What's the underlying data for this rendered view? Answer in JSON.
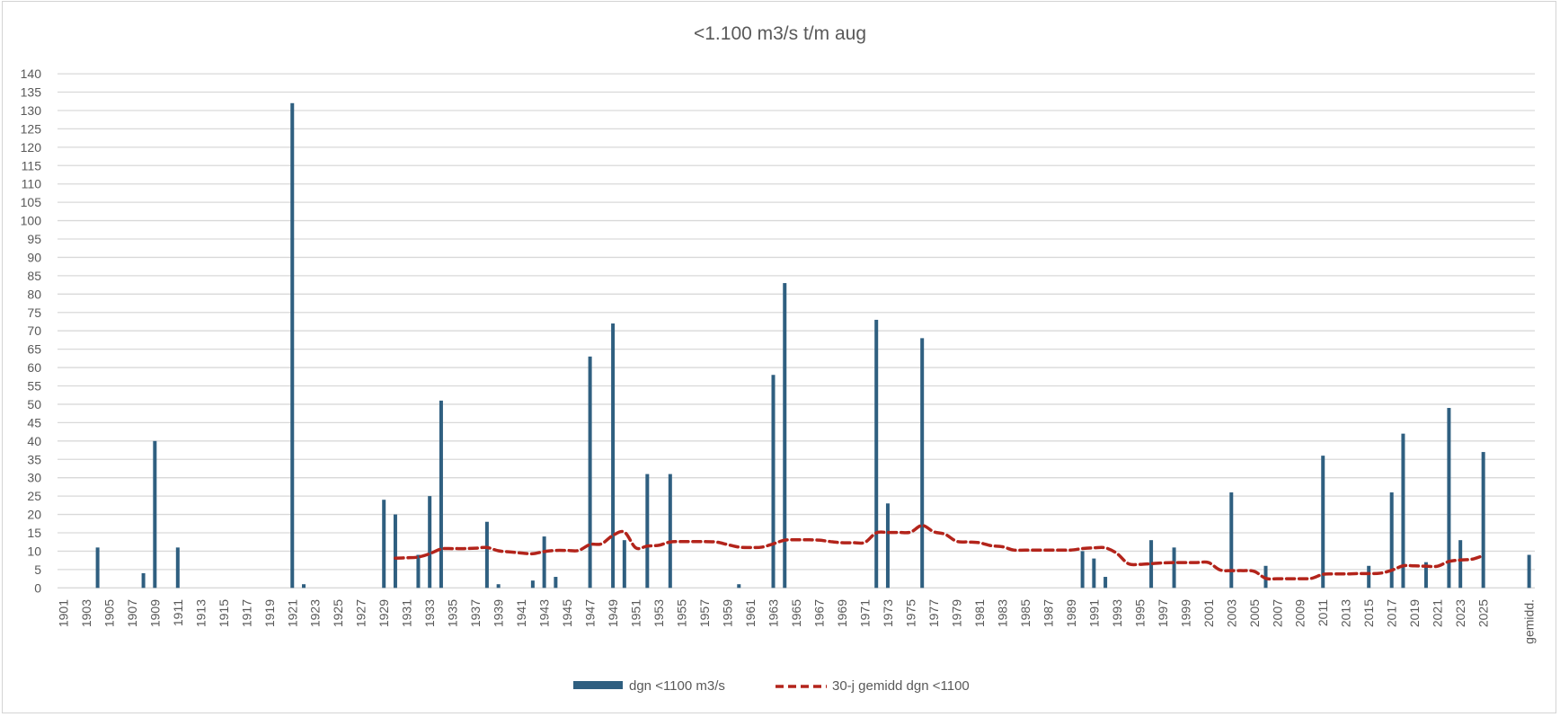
{
  "chart_data": {
    "type": "bar",
    "title": "<1.100 m3/s t/m aug",
    "xlabel": "",
    "ylabel": "",
    "ylim": [
      0,
      140
    ],
    "ytick_step": 5,
    "grid": true,
    "legend_placement": "bottom",
    "xtick_label_interval": 2,
    "categories": [
      "1901",
      "1902",
      "1903",
      "1904",
      "1905",
      "1906",
      "1907",
      "1908",
      "1909",
      "1910",
      "1911",
      "1912",
      "1913",
      "1914",
      "1915",
      "1916",
      "1917",
      "1918",
      "1919",
      "1920",
      "1921",
      "1922",
      "1923",
      "1924",
      "1925",
      "1926",
      "1927",
      "1928",
      "1929",
      "1930",
      "1931",
      "1932",
      "1933",
      "1934",
      "1935",
      "1936",
      "1937",
      "1938",
      "1939",
      "1940",
      "1941",
      "1942",
      "1943",
      "1944",
      "1945",
      "1946",
      "1947",
      "1948",
      "1949",
      "1950",
      "1951",
      "1952",
      "1953",
      "1954",
      "1955",
      "1956",
      "1957",
      "1958",
      "1959",
      "1960",
      "1961",
      "1962",
      "1963",
      "1964",
      "1965",
      "1966",
      "1967",
      "1968",
      "1969",
      "1970",
      "1971",
      "1972",
      "1973",
      "1974",
      "1975",
      "1976",
      "1977",
      "1978",
      "1979",
      "1980",
      "1981",
      "1982",
      "1983",
      "1984",
      "1985",
      "1986",
      "1987",
      "1988",
      "1989",
      "1990",
      "1991",
      "1992",
      "1993",
      "1994",
      "1995",
      "1996",
      "1997",
      "1998",
      "1999",
      "2000",
      "2001",
      "2002",
      "2003",
      "2004",
      "2005",
      "2006",
      "2007",
      "2008",
      "2009",
      "2010",
      "2011",
      "2012",
      "2013",
      "2014",
      "2015",
      "2016",
      "2017",
      "2018",
      "2019",
      "2020",
      "2021",
      "2022",
      "2023",
      "2024",
      "2025",
      "",
      "",
      "",
      "gemidd."
    ],
    "series": [
      {
        "name": "dgn <1100 m3/s",
        "type": "bar",
        "color": "#2F5F80",
        "points": {
          "1904": 11,
          "1908": 4,
          "1909": 40,
          "1911": 11,
          "1921": 132,
          "1922": 1,
          "1929": 24,
          "1930": 20,
          "1932": 9,
          "1933": 25,
          "1934": 51,
          "1938": 18,
          "1939": 1,
          "1942": 2,
          "1943": 14,
          "1944": 3,
          "1947": 63,
          "1949": 72,
          "1950": 13,
          "1952": 31,
          "1954": 31,
          "1960": 1,
          "1963": 58,
          "1964": 83,
          "1972": 73,
          "1973": 23,
          "1976": 68,
          "1990": 10,
          "1991": 8,
          "1992": 3,
          "1996": 13,
          "1998": 11,
          "2003": 26,
          "2006": 6,
          "2011": 36,
          "2015": 6,
          "2017": 26,
          "2018": 42,
          "2020": 7,
          "2022": 49,
          "2023": 13,
          "2025": 37,
          "gemidd.": 9
        }
      },
      {
        "name": "30-j gemidd dgn <1100",
        "type": "line",
        "style": "dashed",
        "color": "#B3241B",
        "points": {
          "1930": 8.1,
          "1931": 8.2,
          "1932": 8.4,
          "1933": 9.3,
          "1934": 10.6,
          "1935": 10.7,
          "1936": 10.7,
          "1937": 10.8,
          "1938": 11.0,
          "1939": 10.1,
          "1940": 9.8,
          "1941": 9.5,
          "1942": 9.3,
          "1943": 9.9,
          "1944": 10.2,
          "1945": 10.2,
          "1946": 10.2,
          "1947": 11.8,
          "1948": 12.0,
          "1949": 14.3,
          "1950": 15.2,
          "1951": 10.9,
          "1952": 11.4,
          "1953": 11.6,
          "1954": 12.5,
          "1955": 12.6,
          "1956": 12.6,
          "1957": 12.6,
          "1958": 12.5,
          "1959": 11.8,
          "1960": 11.1,
          "1961": 11.0,
          "1962": 11.1,
          "1963": 12.0,
          "1964": 13.0,
          "1965": 13.1,
          "1966": 13.1,
          "1967": 13.0,
          "1968": 12.6,
          "1969": 12.3,
          "1970": 12.3,
          "1971": 12.4,
          "1972": 15.0,
          "1973": 15.1,
          "1974": 15.1,
          "1975": 15.2,
          "1976": 17.0,
          "1977": 15.3,
          "1978": 14.6,
          "1979": 12.7,
          "1980": 12.5,
          "1981": 12.3,
          "1982": 11.5,
          "1983": 11.2,
          "1984": 10.3,
          "1985": 10.3,
          "1986": 10.3,
          "1987": 10.3,
          "1988": 10.3,
          "1989": 10.3,
          "1990": 10.7,
          "1991": 10.9,
          "1992": 10.9,
          "1993": 9.4,
          "1994": 6.6,
          "1995": 6.4,
          "1996": 6.6,
          "1997": 6.8,
          "1998": 6.9,
          "1999": 6.9,
          "2000": 6.9,
          "2001": 6.9,
          "2002": 4.9,
          "2003": 4.7,
          "2004": 4.7,
          "2005": 4.5,
          "2006": 2.6,
          "2007": 2.5,
          "2008": 2.5,
          "2009": 2.5,
          "2010": 2.6,
          "2011": 3.7,
          "2012": 3.8,
          "2013": 3.8,
          "2014": 3.9,
          "2015": 3.9,
          "2016": 4.0,
          "2017": 4.8,
          "2018": 6.0,
          "2019": 6.0,
          "2020": 5.9,
          "2021": 5.9,
          "2022": 7.2,
          "2023": 7.6,
          "2024": 7.8,
          "2025": 8.8
        }
      }
    ],
    "gridline_color": "#D9D9D9"
  }
}
